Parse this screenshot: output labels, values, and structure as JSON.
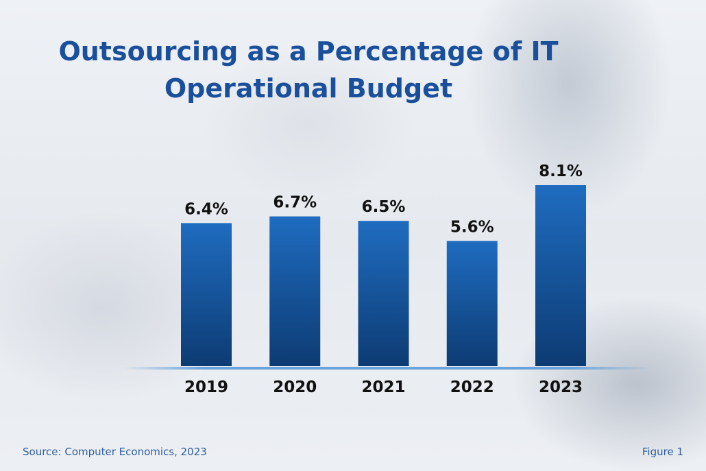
{
  "chart_data": {
    "type": "bar",
    "title_lines": [
      "Outsourcing as a Percentage of IT",
      "Operational Budget"
    ],
    "categories": [
      "2019",
      "2020",
      "2021",
      "2022",
      "2023"
    ],
    "values": [
      6.4,
      6.7,
      6.5,
      5.6,
      8.1
    ],
    "data_labels": [
      "6.4%",
      "6.7%",
      "6.5%",
      "5.6%",
      "8.1%"
    ],
    "unit": "%",
    "ylim": [
      0,
      8.1
    ],
    "grid": false,
    "bar_color_top": "#1f6cc0",
    "bar_color_bottom": "#0d3b73"
  },
  "footer": {
    "source": "Source: Computer Economics, 2023",
    "figure": "Figure 1"
  }
}
